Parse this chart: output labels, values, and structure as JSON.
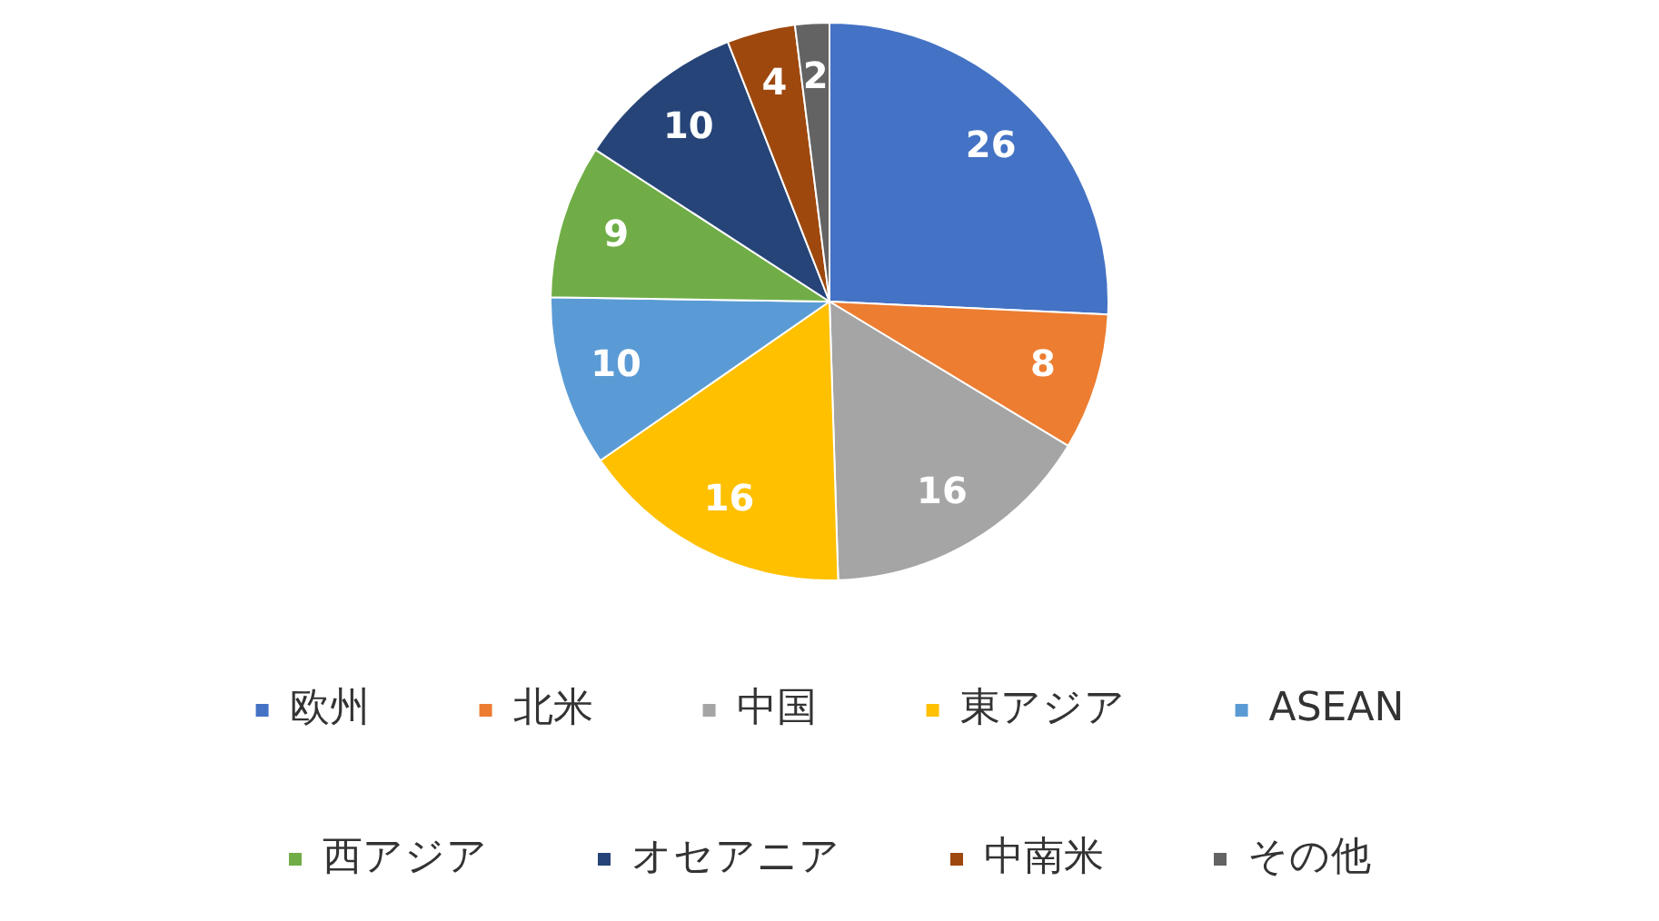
{
  "chart_data": {
    "type": "pie",
    "categories": [
      "欧州",
      "北米",
      "中国",
      "東アジア",
      "ASEAN",
      "西アジア",
      "オセアニア",
      "中南米",
      "その他"
    ],
    "values": [
      26,
      8,
      16,
      16,
      10,
      9,
      10,
      4,
      2
    ],
    "colors": [
      "#4472c4",
      "#ed7d31",
      "#a5a5a5",
      "#ffc000",
      "#5b9bd5",
      "#70ad47",
      "#264478",
      "#9e480e",
      "#636363"
    ],
    "data_labels": true,
    "legend": "bottom"
  }
}
